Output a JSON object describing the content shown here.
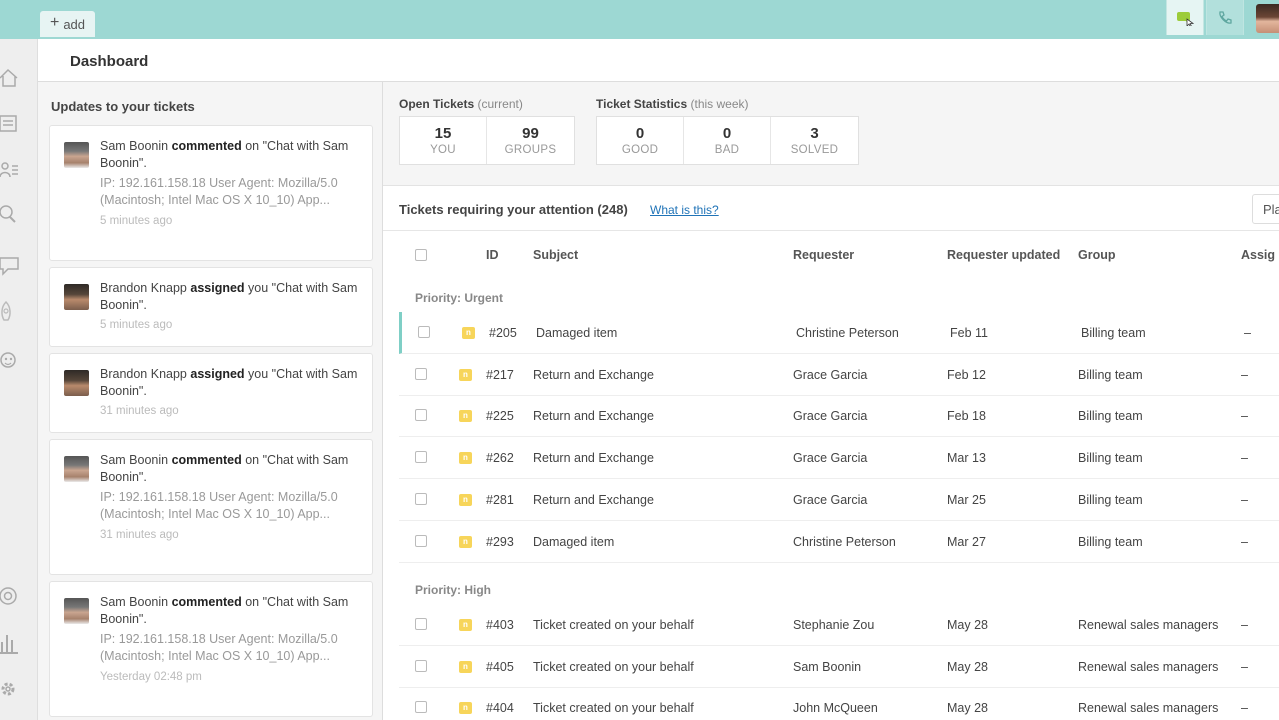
{
  "topbar": {
    "add_label": "add",
    "icons": [
      "chat-icon",
      "phone-icon"
    ]
  },
  "nav": {
    "icons": [
      "home-icon",
      "views-icon",
      "customers-icon",
      "search-icon",
      "chat-bubble-icon",
      "rocket-icon",
      "monkey-icon",
      "help-icon",
      "reporting-icon",
      "settings-icon"
    ]
  },
  "dashboard": {
    "title": "Dashboard"
  },
  "updates": {
    "title": "Updates to your tickets",
    "cards": [
      {
        "actor": "Sam Boonin",
        "action": "commented",
        "prep": " on \"Chat with Sam Boonin\".",
        "meta": "IP: 192.161.158.18 User Agent: Mozilla/5.0 (Macintosh; Intel Mac OS X 10_10) App...",
        "time": "5 minutes ago"
      },
      {
        "actor": "Brandon Knapp",
        "action": "assigned",
        "prep": " you \"Chat with Sam Boonin\".",
        "meta": "",
        "time": "5 minutes ago"
      },
      {
        "actor": "Brandon Knapp",
        "action": "assigned",
        "prep": " you \"Chat with Sam Boonin\".",
        "meta": "",
        "time": "31 minutes ago"
      },
      {
        "actor": "Sam Boonin",
        "action": "commented",
        "prep": " on \"Chat with Sam Boonin\".",
        "meta": "IP: 192.161.158.18 User Agent: Mozilla/5.0 (Macintosh; Intel Mac OS X 10_10) App...",
        "time": "31 minutes ago"
      },
      {
        "actor": "Sam Boonin",
        "action": "commented",
        "prep": " on \"Chat with Sam Boonin\".",
        "meta": "IP: 192.161.158.18 User Agent: Mozilla/5.0 (Macintosh; Intel Mac OS X 10_10) App...",
        "time": "Yesterday 02:48 pm"
      }
    ]
  },
  "open_tickets": {
    "title": "Open Tickets",
    "sub": "(current)",
    "stats": [
      {
        "value": "15",
        "label": "YOU"
      },
      {
        "value": "99",
        "label": "GROUPS"
      }
    ]
  },
  "ticket_stats": {
    "title": "Ticket Statistics",
    "sub": "(this week)",
    "stats": [
      {
        "value": "0",
        "label": "GOOD"
      },
      {
        "value": "0",
        "label": "BAD"
      },
      {
        "value": "3",
        "label": "SOLVED"
      }
    ]
  },
  "tickets": {
    "title": "Tickets requiring your attention",
    "count": "(248)",
    "help_link": "What is this?",
    "play_label": "Pla",
    "columns": {
      "id": "ID",
      "subject": "Subject",
      "requester": "Requester",
      "updated": "Requester updated",
      "group": "Group",
      "assignee": "Assig"
    },
    "badge": "n",
    "groups": [
      {
        "priority": "Priority: Urgent",
        "rows": [
          {
            "id": "#205",
            "subject": "Damaged item",
            "requester": "Christine Peterson",
            "updated": "Feb 11",
            "group": "Billing team",
            "assignee": "–"
          },
          {
            "id": "#217",
            "subject": "Return and Exchange",
            "requester": "Grace Garcia",
            "updated": "Feb 12",
            "group": "Billing team",
            "assignee": "–"
          },
          {
            "id": "#225",
            "subject": "Return and Exchange",
            "requester": "Grace Garcia",
            "updated": "Feb 18",
            "group": "Billing team",
            "assignee": "–"
          },
          {
            "id": "#262",
            "subject": "Return and Exchange",
            "requester": "Grace Garcia",
            "updated": "Mar 13",
            "group": "Billing team",
            "assignee": "–"
          },
          {
            "id": "#281",
            "subject": "Return and Exchange",
            "requester": "Grace Garcia",
            "updated": "Mar 25",
            "group": "Billing team",
            "assignee": "–"
          },
          {
            "id": "#293",
            "subject": "Damaged item",
            "requester": "Christine Peterson",
            "updated": "Mar 27",
            "group": "Billing team",
            "assignee": "–"
          }
        ]
      },
      {
        "priority": "Priority: High",
        "rows": [
          {
            "id": "#403",
            "subject": "Ticket created on your behalf",
            "requester": "Stephanie Zou",
            "updated": "May 28",
            "group": "Renewal sales managers",
            "assignee": "–"
          },
          {
            "id": "#405",
            "subject": "Ticket created on your behalf",
            "requester": "Sam Boonin",
            "updated": "May 28",
            "group": "Renewal sales managers",
            "assignee": "–"
          },
          {
            "id": "#404",
            "subject": "Ticket created on your behalf",
            "requester": "John McQueen",
            "updated": "May 28",
            "group": "Renewal sales managers",
            "assignee": "–"
          }
        ]
      }
    ]
  }
}
